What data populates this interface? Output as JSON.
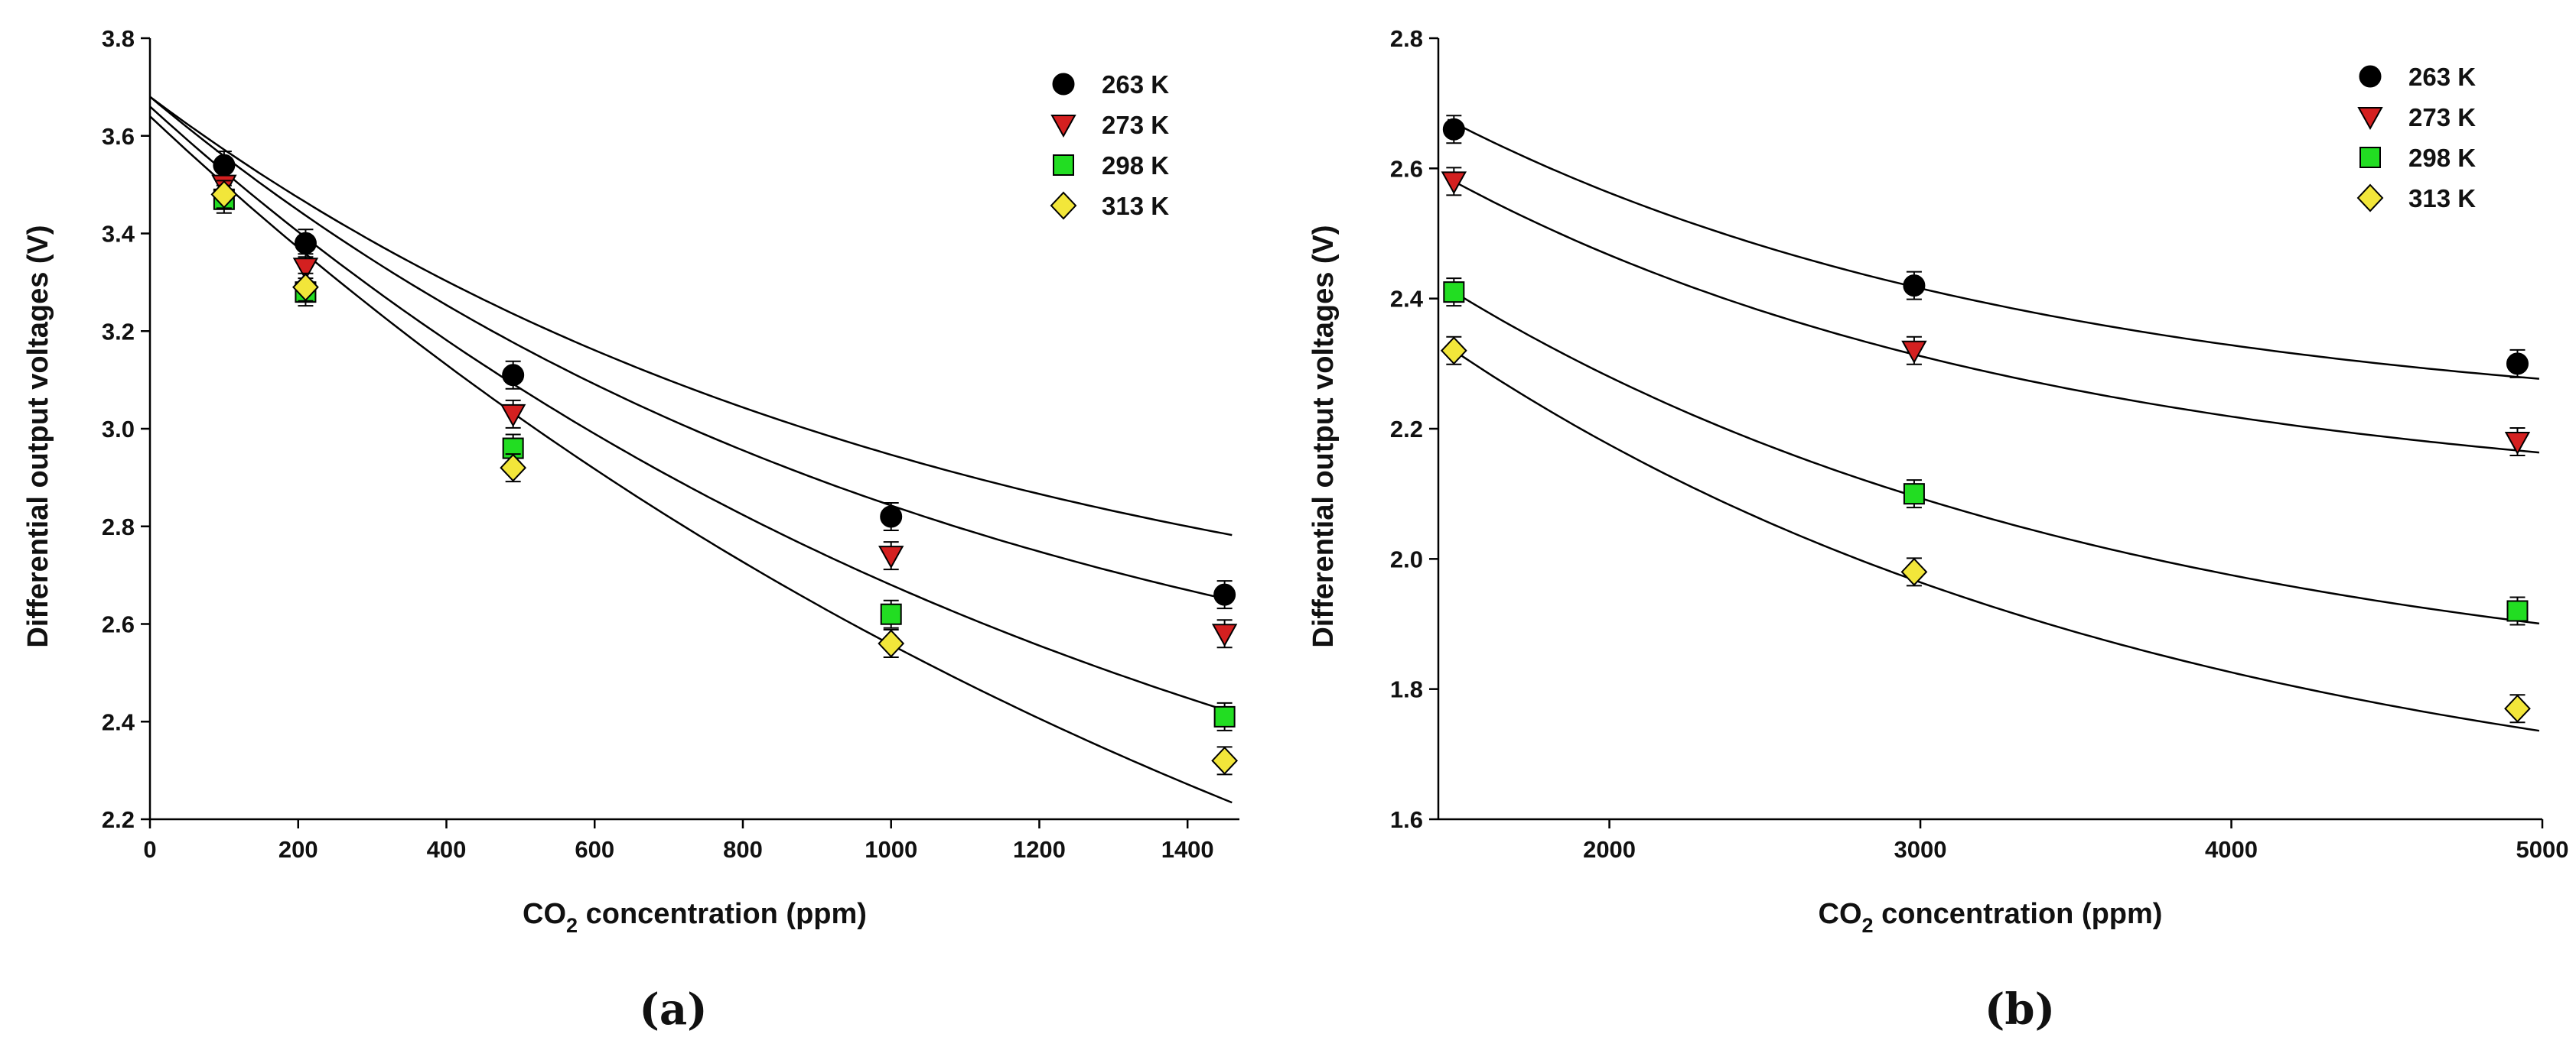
{
  "colors": {
    "263 K": "#000000",
    "273 K": "#d42020",
    "298 K": "#22dd22",
    "313 K": "#f2e63a",
    "fit_line": "#000000"
  },
  "markers": {
    "263 K": "circle",
    "273 K": "triangle-down",
    "298 K": "square",
    "313 K": "diamond"
  },
  "chart_data": [
    {
      "panel_label": "(a)",
      "type": "scatter",
      "xlabel_prefix": "CO",
      "xlabel_subscript": "2",
      "xlabel_suffix": " concentration (ppm)",
      "ylabel": "Differential output voltages (V)",
      "xlim": [
        0,
        1470
      ],
      "ylim": [
        2.2,
        3.8
      ],
      "xticks": [
        0,
        200,
        400,
        600,
        800,
        1000,
        1200,
        1400
      ],
      "xtick_labels": [
        "0",
        "200",
        "400",
        "600",
        "800",
        "1000",
        "1200",
        "1400"
      ],
      "yticks": [
        2.2,
        2.4,
        2.6,
        2.8,
        3.0,
        3.2,
        3.4,
        3.6,
        3.8
      ],
      "ytick_labels": [
        "2.2",
        "2.4",
        "2.6",
        "2.8",
        "3.0",
        "3.2",
        "3.4",
        "3.6",
        "3.8"
      ],
      "legend_position": "top-right",
      "x": [
        100,
        210,
        490,
        1000,
        1450
      ],
      "series": [
        {
          "name": "263 K",
          "values": [
            3.54,
            3.38,
            3.11,
            2.82,
            2.66
          ],
          "fit": {
            "y0": 3.68,
            "a": 1.2,
            "tau": 1059
          }
        },
        {
          "name": "273 K",
          "values": [
            3.5,
            3.33,
            3.03,
            2.74,
            2.58
          ],
          "fit": {
            "y0": 3.68,
            "a": 1.41,
            "tau": 1110
          }
        },
        {
          "name": "298 K",
          "values": [
            3.47,
            3.28,
            2.96,
            2.62,
            2.41
          ],
          "fit": {
            "y0": 3.66,
            "a": 1.9,
            "tau": 1379
          }
        },
        {
          "name": "313 K",
          "values": [
            3.48,
            3.29,
            2.92,
            2.56,
            2.32
          ],
          "fit": {
            "y0": 3.64,
            "a": 2.47,
            "tau": 1734
          }
        }
      ]
    },
    {
      "panel_label": "(b)",
      "type": "scatter",
      "xlabel_prefix": "CO",
      "xlabel_subscript": "2",
      "xlabel_suffix": " concentration (ppm)",
      "ylabel": "Differential output voltages (V)",
      "xlim": [
        1450,
        5000
      ],
      "ylim": [
        1.6,
        2.8
      ],
      "xticks": [
        2000,
        3000,
        4000,
        5000
      ],
      "xtick_labels": [
        "2000",
        "3000",
        "4000",
        "5000"
      ],
      "yticks": [
        1.6,
        1.8,
        2.0,
        2.2,
        2.4,
        2.6,
        2.8
      ],
      "ytick_labels": [
        "1.6",
        "1.8",
        "2.0",
        "2.2",
        "2.4",
        "2.6",
        "2.8"
      ],
      "legend_position": "top-right",
      "x": [
        1500,
        2980,
        4920
      ],
      "series": [
        {
          "name": "263 K",
          "values": [
            2.66,
            2.42,
            2.3
          ],
          "fit": {
            "yinf": 2.2,
            "a": 0.47,
            "tau": 1926,
            "x0": 1500
          }
        },
        {
          "name": "273 K",
          "values": [
            2.58,
            2.32,
            2.18
          ],
          "fit": {
            "yinf": 2.08,
            "a": 0.5,
            "tau": 1950,
            "x0": 1500
          }
        },
        {
          "name": "298 K",
          "values": [
            2.41,
            2.1,
            1.92
          ],
          "fit": {
            "yinf": 1.77,
            "a": 0.64,
            "tau": 2197,
            "x0": 1500
          }
        },
        {
          "name": "313 K",
          "values": [
            2.32,
            1.98,
            1.77
          ],
          "fit": {
            "yinf": 1.564,
            "a": 0.756,
            "tau": 2357,
            "x0": 1500
          }
        }
      ]
    }
  ]
}
